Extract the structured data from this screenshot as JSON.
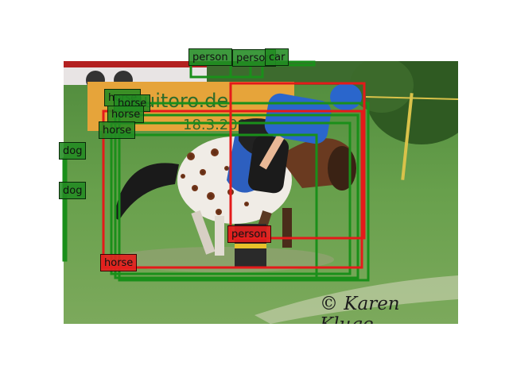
{
  "watermark": "© Karen Kluge",
  "scene_signage": {
    "banner_text": "equitoro.de",
    "banner_date": "18.3.2007"
  },
  "colors": {
    "true_positive": "#1a8f1a",
    "false_positive": "#e41a1a"
  },
  "detections": [
    {
      "label": "person",
      "status": "true_positive"
    },
    {
      "label": "person",
      "status": "true_positive"
    },
    {
      "label": "car",
      "status": "true_positive"
    },
    {
      "label": "horse",
      "status": "true_positive"
    },
    {
      "label": "horse",
      "status": "true_positive"
    },
    {
      "label": "horse",
      "status": "true_positive"
    },
    {
      "label": "horse",
      "status": "true_positive"
    },
    {
      "label": "dog",
      "status": "true_positive"
    },
    {
      "label": "dog",
      "status": "true_positive"
    },
    {
      "label": "person",
      "status": "false_positive"
    },
    {
      "label": "horse",
      "status": "false_positive"
    }
  ]
}
